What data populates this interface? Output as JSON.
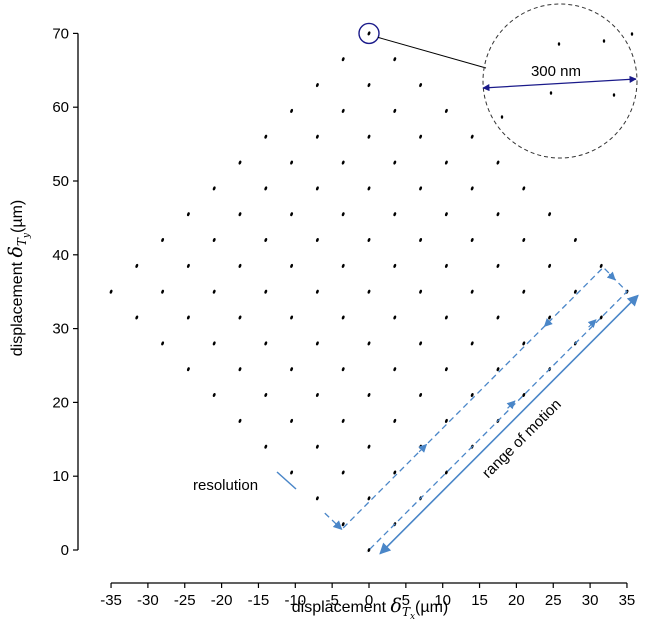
{
  "chart_data": {
    "type": "scatter",
    "title": "",
    "xlabel": {
      "prefix": "displacement ",
      "symbol": "δ",
      "subscript_main": "T",
      "subscript_sub": "x",
      "unit": "(µm)"
    },
    "ylabel": {
      "prefix": "displacement ",
      "symbol": "δ",
      "subscript_main": "T",
      "subscript_sub": "y",
      "unit": "(µm)"
    },
    "xlim": [
      -36,
      36
    ],
    "ylim": [
      -1,
      72
    ],
    "xticks": [
      -35,
      -30,
      -25,
      -20,
      -15,
      -10,
      -5,
      0,
      5,
      10,
      15,
      20,
      25,
      30,
      35
    ],
    "yticks": [
      0,
      10,
      20,
      30,
      40,
      50,
      60,
      70
    ],
    "xtick_labels": [
      "-35",
      "-30",
      "-25",
      "-20",
      "-15",
      "-10",
      "-5",
      "0",
      "5",
      "10",
      "15",
      "20",
      "25",
      "30",
      "35"
    ],
    "ytick_labels": [
      "0",
      "10",
      "20",
      "30",
      "40",
      "50",
      "60",
      "70"
    ],
    "grid": false,
    "series": [
      {
        "marker_color": "#000000",
        "description_lattice": {
          "origin": [
            0,
            0
          ],
          "step_a": [
            3.5,
            3.5
          ],
          "step_b": [
            -3.5,
            3.5
          ],
          "count": 11
        }
      }
    ],
    "annotations": {
      "inset_label": "300 nm",
      "resolution_label": "resolution",
      "range_label": "range of motion"
    },
    "colors": {
      "path": "#4a86c8",
      "inset_circle": "#1a1a8a",
      "marker": "#000000"
    }
  }
}
